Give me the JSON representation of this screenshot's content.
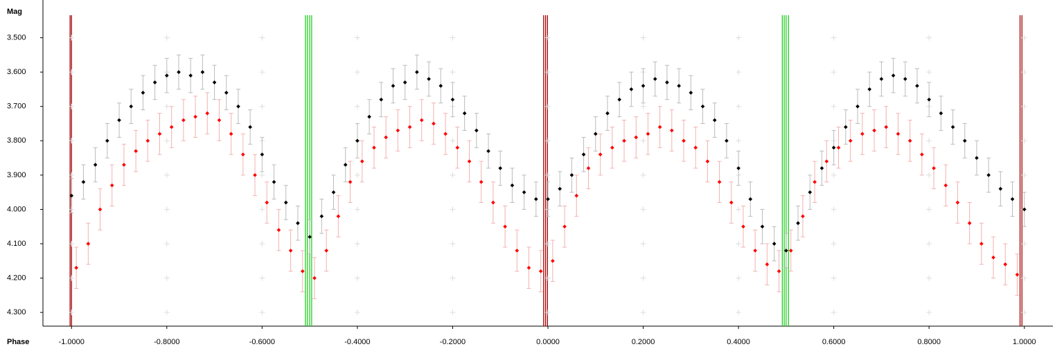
{
  "chart_data": {
    "type": "scatter",
    "x_label": "Phase",
    "y_label": "Mag",
    "xlim": [
      -1.06,
      1.06
    ],
    "ylim": [
      3.39,
      4.34
    ],
    "y_inverted": true,
    "grid": true,
    "xticks": [
      {
        "value": -1,
        "label": "-1.0000"
      },
      {
        "value": -0.8,
        "label": "-0.8000"
      },
      {
        "value": -0.6,
        "label": "-0.6000"
      },
      {
        "value": -0.4,
        "label": "-0.4000"
      },
      {
        "value": -0.2,
        "label": "-0.2000"
      },
      {
        "value": 0,
        "label": "0.0000"
      },
      {
        "value": 0.2,
        "label": "0.2000"
      },
      {
        "value": 0.4,
        "label": "0.4000"
      },
      {
        "value": 0.6,
        "label": "0.6000"
      },
      {
        "value": 0.8,
        "label": "0.8000"
      },
      {
        "value": 1,
        "label": "1.0000"
      }
    ],
    "yticks": [
      {
        "value": 3.5,
        "label": "3.500"
      },
      {
        "value": 3.6,
        "label": "3.600"
      },
      {
        "value": 3.7,
        "label": "3.700"
      },
      {
        "value": 3.8,
        "label": "3.800"
      },
      {
        "value": 3.9,
        "label": "3.900"
      },
      {
        "value": 4.0,
        "label": "4.000"
      },
      {
        "value": 4.1,
        "label": "4.100"
      },
      {
        "value": 4.2,
        "label": "4.200"
      },
      {
        "value": 4.3,
        "label": "4.300"
      }
    ],
    "vlines": [
      {
        "x": -1.003,
        "color": "#a00000"
      },
      {
        "x": -1.0,
        "color": "#a00000"
      },
      {
        "x": -0.509,
        "color": "#22cc22"
      },
      {
        "x": -0.505,
        "color": "#22cc22"
      },
      {
        "x": -0.5,
        "color": "#22cc22"
      },
      {
        "x": -0.496,
        "color": "#22cc22"
      },
      {
        "x": -0.009,
        "color": "#a00000"
      },
      {
        "x": -0.005,
        "color": "#a00000"
      },
      {
        "x": -0.001,
        "color": "#a00000"
      },
      {
        "x": 0.492,
        "color": "#22cc22"
      },
      {
        "x": 0.496,
        "color": "#22cc22"
      },
      {
        "x": 0.5,
        "color": "#22cc22"
      },
      {
        "x": 0.505,
        "color": "#22cc22"
      },
      {
        "x": 0.991,
        "color": "#a00000"
      },
      {
        "x": 0.995,
        "color": "#a00000"
      }
    ],
    "series": [
      {
        "color": "#000000",
        "error_color": "#bbbbbb",
        "x": [
          -1.0,
          -0.975,
          -0.95,
          -0.925,
          -0.9,
          -0.875,
          -0.85,
          -0.825,
          -0.8,
          -0.775,
          -0.75,
          -0.725,
          -0.7,
          -0.675,
          -0.65,
          -0.625,
          -0.6,
          -0.575,
          -0.55,
          -0.525,
          -0.5,
          -0.475,
          -0.45,
          -0.425,
          -0.4,
          -0.375,
          -0.35,
          -0.325,
          -0.3,
          -0.275,
          -0.25,
          -0.225,
          -0.2,
          -0.175,
          -0.15,
          -0.125,
          -0.1,
          -0.075,
          -0.05,
          -0.025,
          0.0,
          0.025,
          0.05,
          0.075,
          0.1,
          0.125,
          0.15,
          0.175,
          0.2,
          0.225,
          0.25,
          0.275,
          0.3,
          0.325,
          0.35,
          0.375,
          0.4,
          0.425,
          0.45,
          0.475,
          0.5,
          0.525,
          0.55,
          0.575,
          0.6,
          0.625,
          0.65,
          0.675,
          0.7,
          0.725,
          0.75,
          0.775,
          0.8,
          0.825,
          0.85,
          0.875,
          0.9,
          0.925,
          0.95,
          0.975,
          1.0
        ],
        "values": [
          3.96,
          3.92,
          3.87,
          3.8,
          3.74,
          3.7,
          3.66,
          3.63,
          3.61,
          3.6,
          3.61,
          3.6,
          3.63,
          3.66,
          3.7,
          3.76,
          3.84,
          3.92,
          3.98,
          4.04,
          4.08,
          4.02,
          3.95,
          3.87,
          3.8,
          3.73,
          3.68,
          3.64,
          3.63,
          3.6,
          3.62,
          3.64,
          3.68,
          3.72,
          3.77,
          3.83,
          3.88,
          3.93,
          3.95,
          3.97,
          3.97,
          3.94,
          3.9,
          3.84,
          3.78,
          3.72,
          3.68,
          3.65,
          3.64,
          3.62,
          3.63,
          3.64,
          3.66,
          3.7,
          3.74,
          3.8,
          3.88,
          3.97,
          4.05,
          4.1,
          4.12,
          4.04,
          3.95,
          3.88,
          3.82,
          3.76,
          3.7,
          3.65,
          3.62,
          3.61,
          3.62,
          3.64,
          3.68,
          3.72,
          3.76,
          3.8,
          3.85,
          3.9,
          3.94,
          3.97,
          4.0
        ],
        "errors": [
          0.05,
          0.05,
          0.05,
          0.05,
          0.05,
          0.05,
          0.05,
          0.05,
          0.05,
          0.05,
          0.05,
          0.05,
          0.05,
          0.05,
          0.05,
          0.05,
          0.05,
          0.05,
          0.05,
          0.05,
          0.05,
          0.05,
          0.05,
          0.05,
          0.05,
          0.05,
          0.05,
          0.05,
          0.05,
          0.05,
          0.05,
          0.05,
          0.05,
          0.05,
          0.05,
          0.05,
          0.05,
          0.05,
          0.05,
          0.05,
          0.05,
          0.05,
          0.05,
          0.05,
          0.05,
          0.05,
          0.05,
          0.05,
          0.05,
          0.05,
          0.05,
          0.05,
          0.05,
          0.05,
          0.05,
          0.05,
          0.05,
          0.05,
          0.05,
          0.05,
          0.05,
          0.05,
          0.05,
          0.05,
          0.05,
          0.05,
          0.05,
          0.05,
          0.05,
          0.05,
          0.05,
          0.05,
          0.05,
          0.05,
          0.05,
          0.05,
          0.05,
          0.05,
          0.05,
          0.05,
          0.05
        ]
      },
      {
        "color": "#ff0000",
        "error_color": "#f4b0b0",
        "x": [
          -0.99,
          -0.965,
          -0.94,
          -0.915,
          -0.89,
          -0.865,
          -0.84,
          -0.815,
          -0.79,
          -0.765,
          -0.74,
          -0.715,
          -0.69,
          -0.665,
          -0.64,
          -0.615,
          -0.59,
          -0.565,
          -0.54,
          -0.515,
          -0.49,
          -0.465,
          -0.44,
          -0.415,
          -0.39,
          -0.365,
          -0.34,
          -0.315,
          -0.29,
          -0.265,
          -0.24,
          -0.215,
          -0.19,
          -0.165,
          -0.14,
          -0.115,
          -0.09,
          -0.065,
          -0.04,
          -0.015,
          0.01,
          0.035,
          0.06,
          0.085,
          0.11,
          0.135,
          0.16,
          0.185,
          0.21,
          0.235,
          0.26,
          0.285,
          0.31,
          0.335,
          0.36,
          0.385,
          0.41,
          0.435,
          0.46,
          0.485,
          0.51,
          0.535,
          0.56,
          0.585,
          0.61,
          0.635,
          0.66,
          0.685,
          0.71,
          0.735,
          0.76,
          0.785,
          0.81,
          0.835,
          0.86,
          0.885,
          0.91,
          0.935,
          0.96,
          0.985
        ],
        "values": [
          4.17,
          4.1,
          4.0,
          3.93,
          3.87,
          3.83,
          3.8,
          3.78,
          3.76,
          3.74,
          3.73,
          3.72,
          3.74,
          3.78,
          3.84,
          3.9,
          3.98,
          4.06,
          4.12,
          4.18,
          4.2,
          4.12,
          4.02,
          3.92,
          3.86,
          3.82,
          3.79,
          3.77,
          3.76,
          3.74,
          3.75,
          3.78,
          3.82,
          3.86,
          3.92,
          3.98,
          4.05,
          4.12,
          4.17,
          4.18,
          4.15,
          4.05,
          3.96,
          3.88,
          3.84,
          3.82,
          3.8,
          3.79,
          3.78,
          3.76,
          3.77,
          3.8,
          3.82,
          3.86,
          3.92,
          3.98,
          4.05,
          4.12,
          4.16,
          4.18,
          4.12,
          4.02,
          3.92,
          3.86,
          3.82,
          3.8,
          3.78,
          3.77,
          3.76,
          3.78,
          3.8,
          3.84,
          3.88,
          3.93,
          3.98,
          4.04,
          4.1,
          4.14,
          4.16,
          4.19
        ],
        "errors": [
          0.06,
          0.06,
          0.06,
          0.06,
          0.06,
          0.06,
          0.06,
          0.06,
          0.06,
          0.06,
          0.06,
          0.06,
          0.06,
          0.06,
          0.06,
          0.06,
          0.06,
          0.06,
          0.06,
          0.06,
          0.06,
          0.06,
          0.06,
          0.06,
          0.06,
          0.06,
          0.06,
          0.06,
          0.06,
          0.06,
          0.06,
          0.06,
          0.06,
          0.06,
          0.06,
          0.06,
          0.06,
          0.06,
          0.06,
          0.06,
          0.06,
          0.06,
          0.06,
          0.06,
          0.06,
          0.06,
          0.06,
          0.06,
          0.06,
          0.06,
          0.06,
          0.06,
          0.06,
          0.06,
          0.06,
          0.06,
          0.06,
          0.06,
          0.06,
          0.06,
          0.06,
          0.06,
          0.06,
          0.06,
          0.06,
          0.06,
          0.06,
          0.06,
          0.06,
          0.06,
          0.06,
          0.06,
          0.06,
          0.06,
          0.06,
          0.06,
          0.06,
          0.06,
          0.06,
          0.06
        ]
      }
    ]
  }
}
